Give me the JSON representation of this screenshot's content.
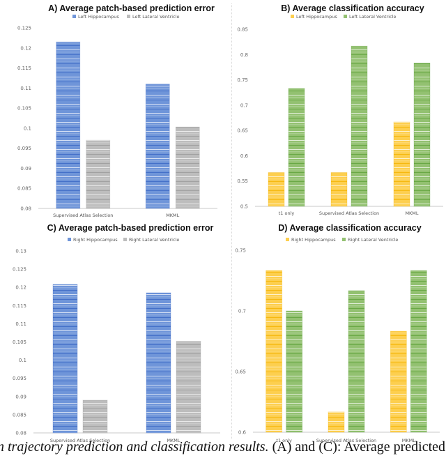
{
  "colors": {
    "blue": "#6f95d9",
    "blue_dark": "#3a66c4",
    "gray": "#bdbdbd",
    "gray_dark": "#9a9a9a",
    "yellow": "#fdcf4f",
    "yellow_dark": "#f2b300",
    "green": "#93c171",
    "green_dark": "#5fa13a"
  },
  "caption": {
    "italic": "n trajectory prediction and classification results.",
    "normal": " (A) and (C): Average predicted"
  },
  "chart_data": [
    {
      "id": "a",
      "type": "bar",
      "title": "A) Average patch-based prediction error",
      "categories": [
        "Supervised Atlas Selection",
        "MKML"
      ],
      "series": [
        {
          "name": "Left Hippocampus",
          "color": "blue",
          "values": [
            0.1215,
            0.111
          ]
        },
        {
          "name": "Left Lateral Ventricle",
          "color": "gray",
          "values": [
            0.097,
            0.1003
          ]
        }
      ],
      "ylim": [
        0.08,
        0.125
      ],
      "yticks": [
        "0.08",
        "0.085",
        "0.09",
        "0.095",
        "0.1",
        "0.105",
        "0.11",
        "0.115",
        "0.12",
        "0.125"
      ],
      "ytick_values": [
        0.08,
        0.085,
        0.09,
        0.095,
        0.1,
        0.105,
        0.11,
        0.115,
        0.12,
        0.125
      ],
      "xlabel": "",
      "ylabel": "",
      "grid": false,
      "legend": "top"
    },
    {
      "id": "b",
      "type": "bar",
      "title": "B) Average classification accuracy",
      "categories": [
        "t1 only",
        "Supervised Atlas Selection",
        "MKML"
      ],
      "series": [
        {
          "name": "Left Hippocampus",
          "color": "yellow",
          "values": [
            0.5667,
            0.5667,
            0.6667
          ]
        },
        {
          "name": "Left Lateral Ventricle",
          "color": "green",
          "values": [
            0.7333,
            0.8167,
            0.7833
          ]
        }
      ],
      "ylim": [
        0.5,
        0.85
      ],
      "yticks": [
        "0.5",
        "0.55",
        "0.6",
        "0.65",
        "0.7",
        "0.75",
        "0.8",
        "0.85"
      ],
      "ytick_values": [
        0.5,
        0.55,
        0.6,
        0.65,
        0.7,
        0.75,
        0.8,
        0.85
      ],
      "xlabel": "",
      "ylabel": "",
      "grid": false,
      "legend": "top"
    },
    {
      "id": "c",
      "type": "bar",
      "title": "C) Average patch-based prediction error",
      "categories": [
        "Supervised Atlas Selection",
        "MKML"
      ],
      "series": [
        {
          "name": "Right Hippocampus",
          "color": "blue",
          "values": [
            0.1208,
            0.1185
          ]
        },
        {
          "name": "Right Lateral Ventricle",
          "color": "gray",
          "values": [
            0.089,
            0.1052
          ]
        }
      ],
      "ylim": [
        0.08,
        0.13
      ],
      "yticks": [
        "0.08",
        "0.085",
        "0.09",
        "0.095",
        "0.1",
        "0.105",
        "0.11",
        "0.115",
        "0.12",
        "0.125",
        "0.13"
      ],
      "ytick_values": [
        0.08,
        0.085,
        0.09,
        0.095,
        0.1,
        0.105,
        0.11,
        0.115,
        0.12,
        0.125,
        0.13
      ],
      "xlabel": "",
      "ylabel": "",
      "grid": false,
      "legend": "top"
    },
    {
      "id": "d",
      "type": "bar",
      "title": "D) Average classification accuracy",
      "categories": [
        "t1 only",
        "Supervised Atlas Selection",
        "MKML"
      ],
      "series": [
        {
          "name": "Right Hippocampus",
          "color": "yellow",
          "values": [
            0.7333,
            0.6167,
            0.6833
          ]
        },
        {
          "name": "Right Lateral Ventricle",
          "color": "green",
          "values": [
            0.7,
            0.7167,
            0.7333
          ]
        }
      ],
      "ylim": [
        0.6,
        0.75
      ],
      "yticks": [
        "0.6",
        "0.65",
        "0.7",
        "0.75"
      ],
      "ytick_values": [
        0.6,
        0.65,
        0.7,
        0.75
      ],
      "xlabel": "",
      "ylabel": "",
      "grid": false,
      "legend": "top"
    }
  ]
}
